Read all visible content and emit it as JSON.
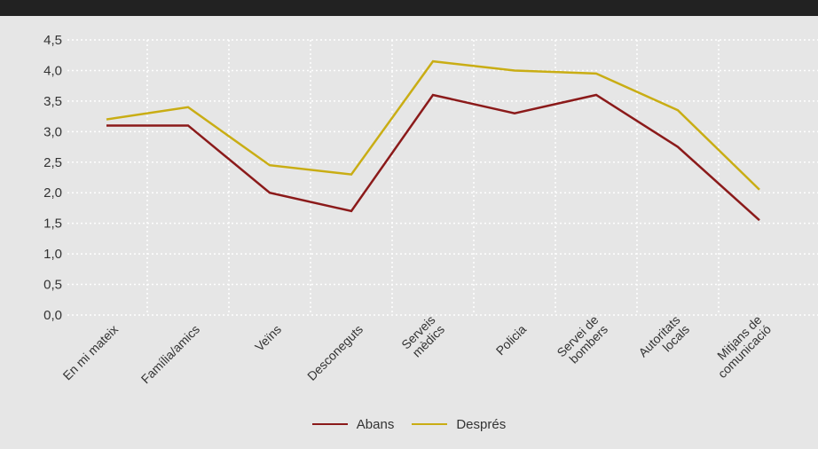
{
  "chart_data": {
    "type": "line",
    "categories": [
      [
        "En mi mateix"
      ],
      [
        "Família/amics"
      ],
      [
        "Veïns"
      ],
      [
        "Desconeguts"
      ],
      [
        "Serveis",
        "mèdics"
      ],
      [
        "Policia"
      ],
      [
        "Servei de",
        "bombers"
      ],
      [
        "Autoritats",
        "locals"
      ],
      [
        "Mitjans de",
        "comunicació"
      ]
    ],
    "series": [
      {
        "name": "Abans",
        "color": "#8b1a1a",
        "values": [
          3.1,
          3.1,
          2.0,
          1.7,
          3.6,
          3.3,
          3.6,
          2.75,
          1.55
        ]
      },
      {
        "name": "Després",
        "color": "#c9ad14",
        "values": [
          3.2,
          3.4,
          2.45,
          2.3,
          4.15,
          4.0,
          3.95,
          3.35,
          2.05
        ]
      }
    ],
    "yticks": [
      "0,0",
      "0,5",
      "1,0",
      "1,5",
      "2,0",
      "2,5",
      "3,0",
      "3,5",
      "4,0",
      "4,5"
    ],
    "ylim": [
      0,
      4.5
    ],
    "grid": true,
    "legend_position": "bottom"
  }
}
